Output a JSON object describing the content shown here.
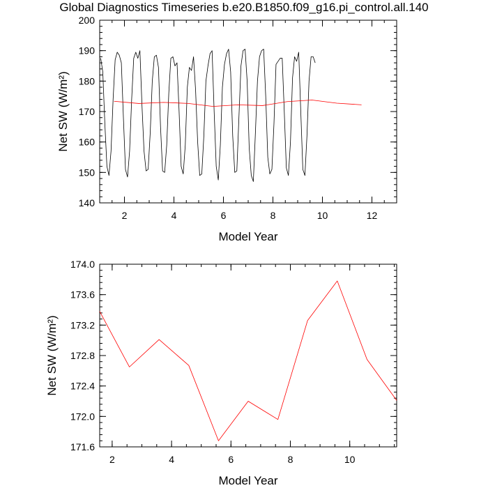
{
  "title": "Global Diagnostics Timeseries b.e20.B1850.f09_g16.pi_control.all.140",
  "colors": {
    "monthly": "#000000",
    "annual": "#ff0000",
    "axis": "#000000"
  },
  "chart_data": [
    {
      "type": "line",
      "xlabel": "Model Year",
      "ylabel": "Net SW (W/m²)",
      "xlim": [
        1,
        13
      ],
      "ylim": [
        140,
        200
      ],
      "xticks": [
        2,
        4,
        6,
        8,
        10,
        12
      ],
      "yticks": [
        140,
        150,
        160,
        170,
        180,
        190,
        200
      ],
      "series": [
        {
          "color": "#000000",
          "x_start": 1.0417,
          "x_step": 0.0833333,
          "values": [
            187.5,
            183.0,
            166.0,
            152.0,
            149.0,
            157.0,
            174.0,
            187.0,
            189.5,
            188.5,
            186.0,
            168.0,
            151.0,
            148.5,
            157.0,
            174.0,
            187.5,
            189.5,
            187.5,
            190.0,
            172.0,
            157.0,
            150.5,
            151.0,
            163.0,
            180.0,
            188.0,
            188.5,
            184.5,
            165.0,
            150.5,
            150.0,
            159.0,
            176.0,
            187.5,
            188.0,
            185.0,
            186.0,
            170.0,
            152.0,
            149.5,
            159.0,
            178.0,
            184.5,
            183.5,
            188.0,
            177.0,
            160.0,
            149.0,
            149.5,
            162.0,
            180.0,
            185.0,
            189.0,
            190.0,
            170.0,
            152.0,
            147.5,
            159.0,
            178.0,
            185.5,
            189.0,
            190.5,
            183.0,
            162.0,
            150.0,
            150.5,
            168.0,
            185.0,
            190.0,
            190.5,
            180.0,
            158.0,
            149.0,
            147.0,
            163.0,
            180.0,
            188.0,
            190.0,
            190.5,
            175.0,
            155.0,
            149.5,
            151.0,
            166.0,
            185.5,
            186.5,
            187.5,
            187.5,
            170.0,
            151.5,
            149.0,
            160.0,
            181.0,
            188.0,
            186.5,
            189.5,
            170.0,
            151.0,
            149.0,
            162.0,
            180.0,
            188.0,
            188.0,
            186.0
          ]
        },
        {
          "color": "#ff0000",
          "x": [
            1.58,
            2.58,
            3.58,
            4.58,
            5.58,
            6.58,
            7.58,
            8.58,
            9.58,
            10.58,
            11.58
          ],
          "values": [
            173.38,
            172.65,
            173.01,
            172.67,
            171.68,
            172.2,
            171.96,
            173.26,
            173.78,
            172.75,
            172.21
          ]
        }
      ]
    },
    {
      "type": "line",
      "xlabel": "Model Year",
      "ylabel": "Net SW (W/m²)",
      "xlim": [
        1.58,
        11.58
      ],
      "ylim": [
        171.6,
        174.0
      ],
      "xticks": [
        2,
        4,
        6,
        8,
        10
      ],
      "yticks": [
        171.6,
        172.0,
        172.4,
        172.8,
        173.2,
        173.6,
        174.0
      ],
      "ytick_labels": [
        "171.6",
        "172.0",
        "172.4",
        "172.8",
        "173.2",
        "173.6",
        "174.0"
      ],
      "series": [
        {
          "color": "#ff0000",
          "x": [
            1.58,
            2.58,
            3.58,
            4.58,
            5.58,
            6.58,
            7.58,
            8.58,
            9.58,
            10.58,
            11.58
          ],
          "values": [
            173.38,
            172.65,
            173.01,
            172.67,
            171.68,
            172.2,
            171.96,
            173.26,
            173.78,
            172.75,
            172.21
          ]
        }
      ]
    }
  ]
}
